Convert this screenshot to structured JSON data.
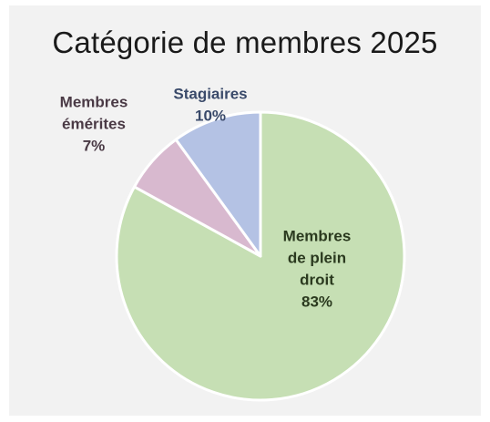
{
  "chart_data": {
    "type": "pie",
    "title": "Catégorie de membres 2025",
    "slices": [
      {
        "label_lines": [
          "Membres",
          "de plein",
          "droit"
        ],
        "value_label": "83%",
        "value": 83,
        "color": "#c6dfb4",
        "text_color": "#2b3a1f"
      },
      {
        "label_lines": [
          "Membres",
          "émérites"
        ],
        "value_label": "7%",
        "value": 7,
        "color": "#d8b9cf",
        "text_color": "#4a3a45"
      },
      {
        "label_lines": [
          "Stagiaires"
        ],
        "value_label": "10%",
        "value": 10,
        "color": "#b4c2e4",
        "text_color": "#3a4a6a"
      }
    ]
  }
}
